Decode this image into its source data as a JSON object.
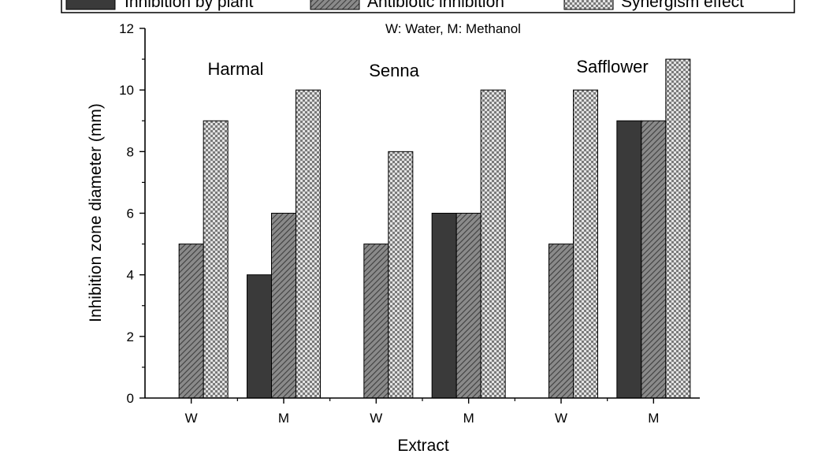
{
  "chart_data": {
    "type": "bar",
    "subtitle": "W: Water, M: Methanol",
    "xlabel": "Extract",
    "ylabel": "Inhibition zone diameter (mm)",
    "ylim": [
      0,
      12
    ],
    "yticks": [
      0,
      2,
      4,
      6,
      8,
      10,
      12
    ],
    "categories": [
      "W",
      "M",
      "W",
      "M",
      "W",
      "M"
    ],
    "groups": [
      "Harmal",
      "Senna",
      "Safflower"
    ],
    "series": [
      {
        "name": "Inhibition by plant",
        "values": [
          0,
          4,
          0,
          6,
          0,
          9
        ],
        "color": "#3a3a3a",
        "pattern": "solid"
      },
      {
        "name": "Antibiotic inhibition",
        "values": [
          5,
          6,
          5,
          6,
          5,
          9
        ],
        "color": "#6e6e6e",
        "pattern": "diagonal"
      },
      {
        "name": "Synergism effect",
        "values": [
          9,
          10,
          8,
          10,
          10,
          11
        ],
        "color": "#bdbdbd",
        "pattern": "checker"
      }
    ],
    "legend": "top",
    "grid": false
  }
}
